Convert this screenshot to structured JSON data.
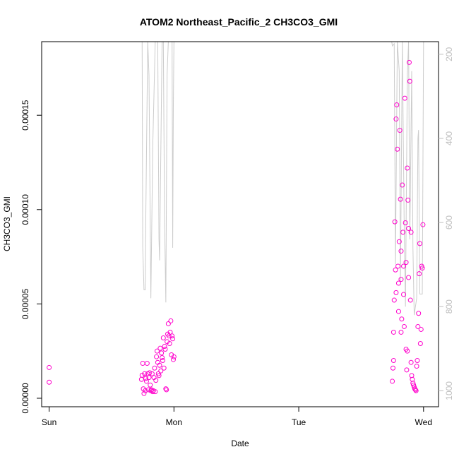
{
  "chart_data": {
    "type": "scatter",
    "title": "ATOM2 Northeast_Pacific_2 CH3CO3_GMI",
    "xlabel": "Date",
    "ylabel": "CH3CO3_GMI",
    "x_unit": "days from Sun 00:00",
    "xlim": [
      -0.06,
      3.12
    ],
    "ylim": [
      -4.5e-06,
      0.000189
    ],
    "x_ticks": [
      {
        "value": 0,
        "label": "Sun"
      },
      {
        "value": 1,
        "label": "Mon"
      },
      {
        "value": 2,
        "label": "Tue"
      },
      {
        "value": 3,
        "label": "Wed"
      }
    ],
    "y_ticks": [
      {
        "value": 0.0,
        "label": "0.00000"
      },
      {
        "value": 5e-05,
        "label": "0.00005"
      },
      {
        "value": 0.0001,
        "label": "0.00010"
      },
      {
        "value": 0.00015,
        "label": "0.00015"
      }
    ],
    "y2_ticks": [
      {
        "value": 200,
        "label": "200"
      },
      {
        "value": 400,
        "label": "400"
      },
      {
        "value": 600,
        "label": "600"
      },
      {
        "value": 800,
        "label": "800"
      },
      {
        "value": 1000,
        "label": "1000"
      }
    ],
    "y2lim": [
      1038,
      170
    ],
    "y2_reversed": true,
    "series": [
      {
        "kind": "points",
        "color": "#ff00cc",
        "marker": "open-circle",
        "points": [
          [
            0.0,
            8.5e-06
          ],
          [
            0.0,
            1.63e-05
          ],
          [
            0.74,
            1e-05
          ],
          [
            0.745,
            1.22e-05
          ],
          [
            0.75,
            1.85e-05
          ],
          [
            0.755,
            5e-06
          ],
          [
            0.76,
            2.5e-06
          ],
          [
            0.765,
            1.3e-05
          ],
          [
            0.77,
            4e-06
          ],
          [
            0.775,
            1.05e-05
          ],
          [
            0.78,
            9e-06
          ],
          [
            0.785,
            1.85e-05
          ],
          [
            0.79,
            1.3e-05
          ],
          [
            0.795,
            4.5e-06
          ],
          [
            0.8,
            1.1e-05
          ],
          [
            0.805,
            1.35e-05
          ],
          [
            0.81,
            7e-06
          ],
          [
            0.815,
            4e-06
          ],
          [
            0.82,
            4.5e-06
          ],
          [
            0.825,
            1.3e-05
          ],
          [
            0.83,
            3.5e-06
          ],
          [
            0.835,
            4e-06
          ],
          [
            0.84,
            1.1e-05
          ],
          [
            0.845,
            1.6e-05
          ],
          [
            0.85,
            3.5e-06
          ],
          [
            0.855,
            9.5e-06
          ],
          [
            0.86,
            2.2e-05
          ],
          [
            0.865,
            2.5e-05
          ],
          [
            0.87,
            1.9e-05
          ],
          [
            0.875,
            1.3e-05
          ],
          [
            0.88,
            1.2e-05
          ],
          [
            0.885,
            1.75e-05
          ],
          [
            0.89,
            2.65e-05
          ],
          [
            0.895,
            1.45e-05
          ],
          [
            0.9,
            2.4e-05
          ],
          [
            0.905,
            2.15e-05
          ],
          [
            0.91,
            2e-05
          ],
          [
            0.915,
            3.2e-05
          ],
          [
            0.92,
            1.6e-05
          ],
          [
            0.925,
            2.75e-05
          ],
          [
            0.93,
            2.6e-05
          ],
          [
            0.935,
            5e-06
          ],
          [
            0.94,
            4.5e-06
          ],
          [
            0.945,
            3e-05
          ],
          [
            0.95,
            3.4e-05
          ],
          [
            0.955,
            3.95e-05
          ],
          [
            0.96,
            3.3e-05
          ],
          [
            0.965,
            2.9e-05
          ],
          [
            0.97,
            3.5e-05
          ],
          [
            0.975,
            4.1e-05
          ],
          [
            0.98,
            2.3e-05
          ],
          [
            0.985,
            3.3e-05
          ],
          [
            0.99,
            3.15e-05
          ],
          [
            0.995,
            2.05e-05
          ],
          [
            1.0,
            2.2e-05
          ],
          [
            2.75,
            9e-06
          ],
          [
            2.755,
            1.6e-05
          ],
          [
            2.76,
            3.5e-05
          ],
          [
            2.765,
            5.2e-05
          ],
          [
            2.77,
            9.35e-05
          ],
          [
            2.775,
            6.8e-05
          ],
          [
            2.78,
            0.000148
          ],
          [
            2.785,
            0.0001555
          ],
          [
            2.79,
            0.000132
          ],
          [
            2.795,
            7e-05
          ],
          [
            2.8,
            6.1e-05
          ],
          [
            2.805,
            8.3e-05
          ],
          [
            2.81,
            0.000142
          ],
          [
            2.815,
            0.0001055
          ],
          [
            2.82,
            7.8e-05
          ],
          [
            2.825,
            4.2e-05
          ],
          [
            2.83,
            0.000113
          ],
          [
            2.835,
            8.8e-05
          ],
          [
            2.84,
            7e-05
          ],
          [
            2.845,
            3.8e-05
          ],
          [
            2.85,
            0.000159
          ],
          [
            2.855,
            9.3e-05
          ],
          [
            2.86,
            2.6e-05
          ],
          [
            2.865,
            1.5e-05
          ],
          [
            2.87,
            0.000122
          ],
          [
            2.875,
            0.000105
          ],
          [
            2.88,
            9e-05
          ],
          [
            2.885,
            0.000178
          ],
          [
            2.89,
            0.000168
          ],
          [
            2.895,
            5.2e-05
          ],
          [
            2.9,
            1.9e-05
          ],
          [
            2.905,
            1.2e-05
          ],
          [
            2.91,
            1e-05
          ],
          [
            2.915,
            8e-06
          ],
          [
            2.92,
            7e-06
          ],
          [
            2.925,
            6e-06
          ],
          [
            2.93,
            5e-06
          ],
          [
            2.935,
            4.5e-06
          ],
          [
            2.94,
            4e-06
          ],
          [
            2.945,
            1.7e-05
          ],
          [
            2.95,
            2e-05
          ],
          [
            2.955,
            3.8e-05
          ],
          [
            2.96,
            4.5e-05
          ],
          [
            2.965,
            6.6e-05
          ],
          [
            2.97,
            8.2e-05
          ],
          [
            2.975,
            2.9e-05
          ],
          [
            2.98,
            3.65e-05
          ],
          [
            2.985,
            7e-05
          ],
          [
            2.99,
            6.9e-05
          ],
          [
            2.995,
            9.2e-05
          ],
          [
            2.76,
            2e-05
          ],
          [
            2.78,
            5.6e-05
          ],
          [
            2.8,
            4.6e-05
          ],
          [
            2.82,
            6.3e-05
          ],
          [
            2.84,
            5.5e-05
          ],
          [
            2.86,
            7.2e-05
          ],
          [
            2.88,
            6.4e-05
          ],
          [
            2.9,
            8.8e-05
          ],
          [
            2.82,
            3.5e-05
          ],
          [
            2.87,
            2.5e-05
          ]
        ]
      },
      {
        "kind": "line",
        "color": "#cccccc",
        "axis": "right",
        "points": [
          [
            0.73,
            170
          ],
          [
            0.745,
            170
          ],
          [
            0.75,
            660
          ],
          [
            0.76,
            760
          ],
          [
            0.77,
            760
          ],
          [
            0.775,
            570
          ],
          [
            0.79,
            170
          ],
          [
            0.8,
            250
          ],
          [
            0.815,
            780
          ],
          [
            0.82,
            660
          ],
          [
            0.83,
            420
          ],
          [
            0.85,
            170
          ],
          [
            0.87,
            170
          ],
          [
            0.88,
            640
          ],
          [
            0.885,
            690
          ],
          [
            0.89,
            560
          ],
          [
            0.905,
            170
          ],
          [
            0.915,
            170
          ],
          [
            0.925,
            600
          ],
          [
            0.935,
            790
          ],
          [
            0.945,
            250
          ],
          [
            0.955,
            170
          ],
          [
            0.985,
            170
          ],
          [
            0.99,
            660
          ],
          [
            0.995,
            330
          ],
          [
            1.0,
            170
          ],
          [
            2.72,
            170
          ],
          [
            2.745,
            170
          ],
          [
            2.75,
            180
          ],
          [
            2.765,
            175
          ],
          [
            2.775,
            700
          ],
          [
            2.79,
            170
          ],
          [
            2.805,
            240
          ],
          [
            2.815,
            740
          ],
          [
            2.83,
            170
          ],
          [
            2.845,
            610
          ],
          [
            2.855,
            800
          ],
          [
            2.87,
            250
          ],
          [
            2.88,
            170
          ],
          [
            2.89,
            640
          ],
          [
            2.905,
            240
          ],
          [
            2.915,
            660
          ],
          [
            2.925,
            820
          ],
          [
            2.945,
            780
          ],
          [
            2.955,
            400
          ],
          [
            2.96,
            380
          ],
          [
            2.97,
            770
          ],
          [
            2.99,
            770
          ],
          [
            3.0,
            170
          ]
        ]
      }
    ],
    "grid": false,
    "legend": "none"
  }
}
